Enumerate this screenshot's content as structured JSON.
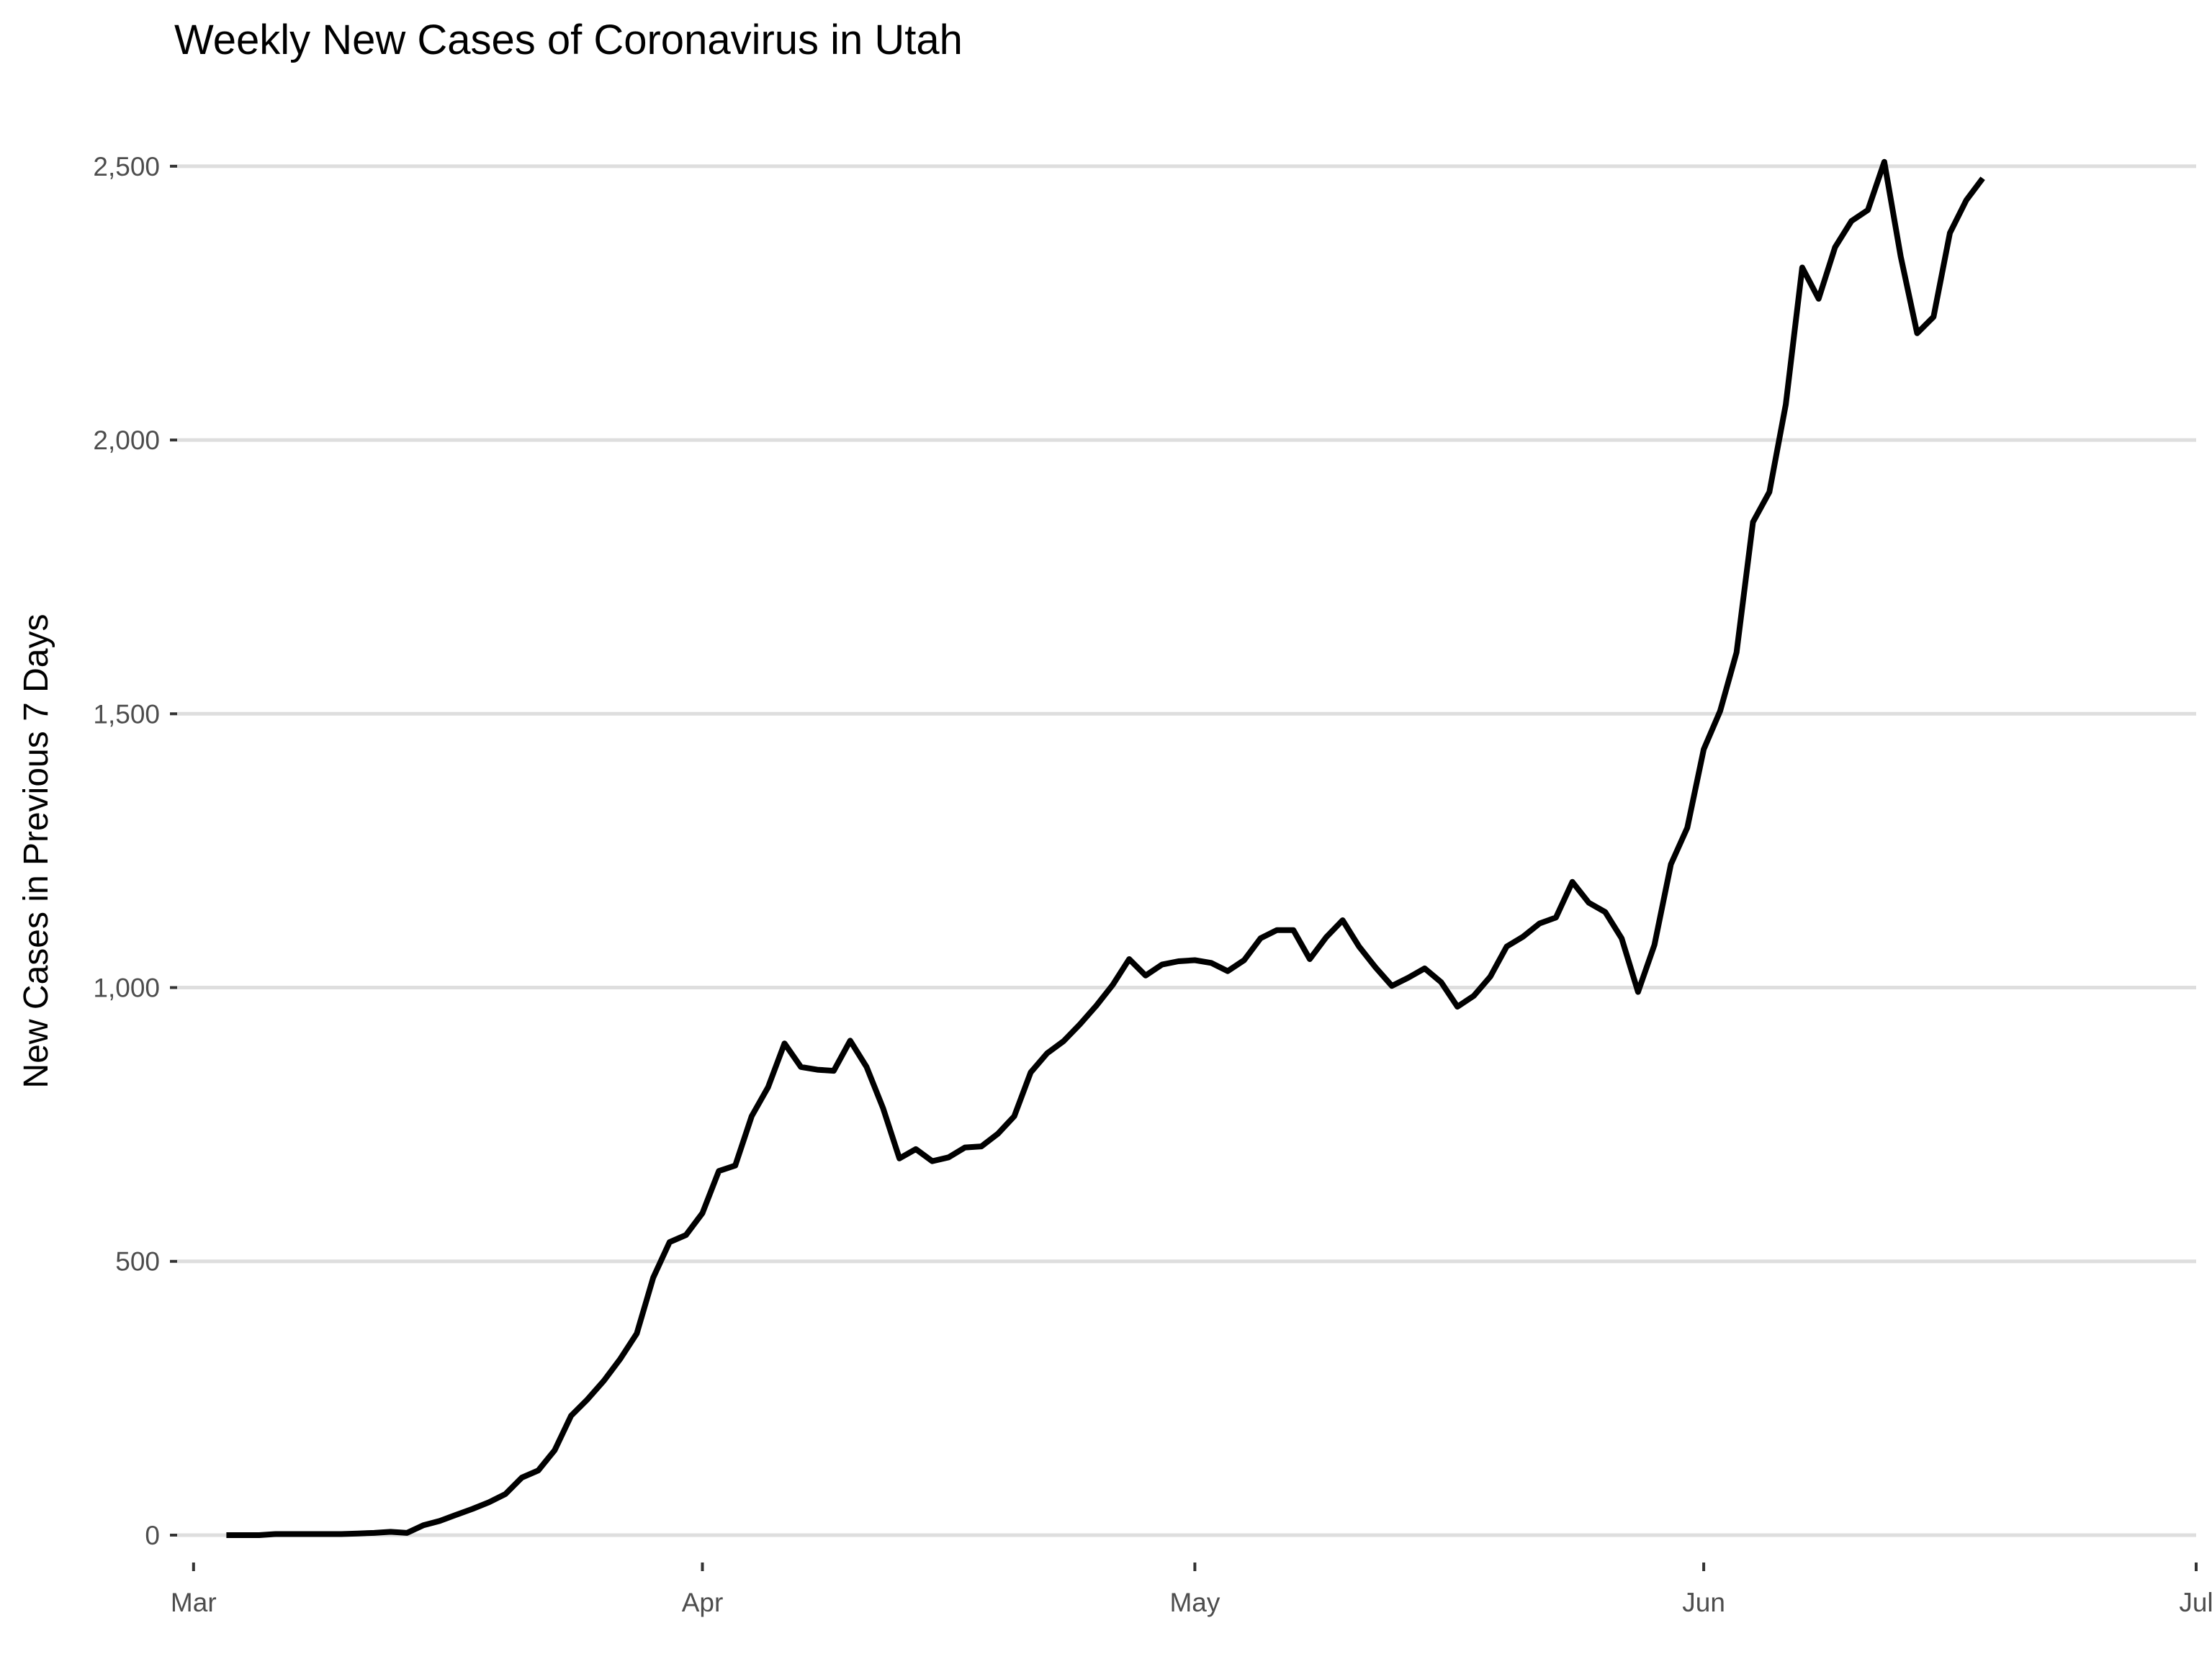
{
  "chart_data": {
    "type": "line",
    "title": "Weekly New Cases of Coronavirus in Utah",
    "xlabel": "",
    "ylabel": "New Cases in Previous 7 Days",
    "x_start": "2020-03-01",
    "xlim": [
      "2020-02-29",
      "2020-07-01"
    ],
    "ylim": [
      -50,
      2580
    ],
    "x_ticks": [
      {
        "date": "2020-03-01",
        "label": "Mar"
      },
      {
        "date": "2020-04-01",
        "label": "Apr"
      },
      {
        "date": "2020-05-01",
        "label": "May"
      },
      {
        "date": "2020-06-01",
        "label": "Jun"
      },
      {
        "date": "2020-07-01",
        "label": "Jul"
      }
    ],
    "y_ticks": [
      {
        "value": 0,
        "label": "0"
      },
      {
        "value": 500,
        "label": "500"
      },
      {
        "value": 1000,
        "label": "1,000"
      },
      {
        "value": 1500,
        "label": "1,500"
      },
      {
        "value": 2000,
        "label": "2,000"
      },
      {
        "value": 2500,
        "label": "2,500"
      }
    ],
    "grid": true,
    "series": [
      {
        "color": "#000000",
        "x": [
          "2020-03-03",
          "2020-03-04",
          "2020-03-05",
          "2020-03-06",
          "2020-03-07",
          "2020-03-08",
          "2020-03-09",
          "2020-03-10",
          "2020-03-11",
          "2020-03-12",
          "2020-03-13",
          "2020-03-14",
          "2020-03-15",
          "2020-03-16",
          "2020-03-17",
          "2020-03-18",
          "2020-03-19",
          "2020-03-20",
          "2020-03-21",
          "2020-03-22",
          "2020-03-23",
          "2020-03-24",
          "2020-03-25",
          "2020-03-26",
          "2020-03-27",
          "2020-03-28",
          "2020-03-29",
          "2020-03-30",
          "2020-03-31",
          "2020-04-01",
          "2020-04-02",
          "2020-04-03",
          "2020-04-04",
          "2020-04-05",
          "2020-04-06",
          "2020-04-07",
          "2020-04-08",
          "2020-04-09",
          "2020-04-10",
          "2020-04-11",
          "2020-04-12",
          "2020-04-13",
          "2020-04-14",
          "2020-04-15",
          "2020-04-16",
          "2020-04-17",
          "2020-04-18",
          "2020-04-19",
          "2020-04-20",
          "2020-04-21",
          "2020-04-22",
          "2020-04-23",
          "2020-04-24",
          "2020-04-25",
          "2020-04-26",
          "2020-04-27",
          "2020-04-28",
          "2020-04-29",
          "2020-04-30",
          "2020-05-01",
          "2020-05-02",
          "2020-05-03",
          "2020-05-04",
          "2020-05-05",
          "2020-05-06",
          "2020-05-07",
          "2020-05-08",
          "2020-05-09",
          "2020-05-10",
          "2020-05-11",
          "2020-05-12",
          "2020-05-13",
          "2020-05-14",
          "2020-05-15",
          "2020-05-16",
          "2020-05-17",
          "2020-05-18",
          "2020-05-19",
          "2020-05-20",
          "2020-05-21",
          "2020-05-22",
          "2020-05-23",
          "2020-05-24",
          "2020-05-25",
          "2020-05-26",
          "2020-05-27",
          "2020-05-28",
          "2020-05-29",
          "2020-05-30",
          "2020-05-31",
          "2020-06-01",
          "2020-06-02",
          "2020-06-03",
          "2020-06-04",
          "2020-06-05",
          "2020-06-06",
          "2020-06-07",
          "2020-06-08",
          "2020-06-09",
          "2020-06-10",
          "2020-06-11",
          "2020-06-12",
          "2020-06-13",
          "2020-06-14",
          "2020-06-15",
          "2020-06-16",
          "2020-06-17",
          "2020-06-18"
        ],
        "values": [
          0,
          0,
          0,
          2,
          2,
          2,
          2,
          2,
          3,
          4,
          6,
          4,
          18,
          26,
          37,
          48,
          60,
          75,
          105,
          118,
          155,
          218,
          248,
          282,
          322,
          368,
          470,
          535,
          548,
          588,
          665,
          675,
          765,
          818,
          898,
          855,
          850,
          848,
          903,
          855,
          780,
          688,
          705,
          683,
          690,
          708,
          710,
          733,
          765,
          845,
          880,
          902,
          933,
          967,
          1005,
          1052,
          1022,
          1042,
          1048,
          1050,
          1045,
          1030,
          1050,
          1090,
          1105,
          1105,
          1052,
          1092,
          1123,
          1075,
          1037,
          1003,
          1018,
          1035,
          1010,
          965,
          985,
          1020,
          1075,
          1093,
          1117,
          1128,
          1193,
          1155,
          1138,
          1090,
          992,
          1078,
          1225,
          1292,
          1435,
          1505,
          1612,
          1850,
          1905,
          2065,
          2315,
          2258,
          2352,
          2400,
          2420,
          2508,
          2335,
          2195,
          2225,
          2378,
          2438,
          2478
        ]
      }
    ]
  }
}
